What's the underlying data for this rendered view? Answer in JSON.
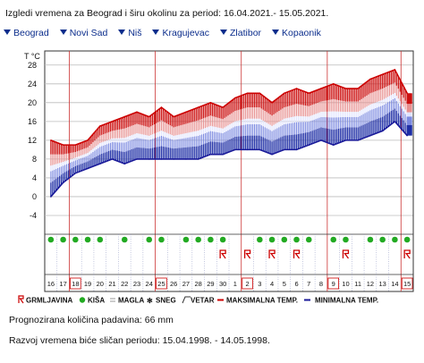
{
  "header": {
    "title": "Izgledi vremena za Beograd i širu okolinu za period: 16.04.2021.- 15.05.2021."
  },
  "cities": [
    "Beograd",
    "Novi Sad",
    "Niš",
    "Kragujevac",
    "Zlatibor",
    "Kopaonik"
  ],
  "legend": {
    "thunder": "GRMLJAVINA",
    "rain": "KIŠA",
    "fog": "MAGLA",
    "snow": "SNEG",
    "wind": "VETAR",
    "max": "MAKSIMALNA TEMP.",
    "min": "MINIMALNA TEMP."
  },
  "footer": {
    "precip_label": "Prognozirana količina padavina:",
    "precip_value": "66",
    "precip_unit": "mm",
    "similar_label": "Razvoj vremena biće sličan periodu:",
    "similar_value": "15.04.1998. - 14.05.1998."
  },
  "chart_data": {
    "type": "line",
    "ylabel": "T °C",
    "yticks": [
      -4,
      0,
      4,
      8,
      12,
      16,
      20,
      24,
      28
    ],
    "ylim": [
      -8,
      31
    ],
    "grid": true,
    "categories": [
      "16",
      "17",
      "18",
      "19",
      "20",
      "21",
      "22",
      "23",
      "24",
      "25",
      "26",
      "27",
      "28",
      "29",
      "30",
      "1",
      "2",
      "3",
      "4",
      "5",
      "6",
      "7",
      "8",
      "9",
      "10",
      "11",
      "12",
      "13",
      "14",
      "15"
    ],
    "highlighted_days": [
      "18",
      "25",
      "2",
      "9",
      "15"
    ],
    "series": [
      {
        "name": "MAKSIMALNA TEMP.",
        "color": "#cc0000",
        "values": [
          12,
          11,
          11,
          12,
          15,
          16,
          17,
          18,
          17,
          19,
          17,
          18,
          19,
          20,
          19,
          21,
          22,
          22,
          20,
          22,
          23,
          22,
          23,
          24,
          23,
          23,
          25,
          26,
          27,
          22
        ]
      },
      {
        "name": "MINIMALNA TEMP.",
        "color": "#1a1a99",
        "values": [
          0,
          3,
          5,
          6,
          7,
          8,
          7,
          8,
          8,
          8,
          8,
          8,
          8,
          9,
          9,
          10,
          10,
          10,
          9,
          10,
          10,
          11,
          12,
          11,
          12,
          12,
          13,
          14,
          16,
          13
        ]
      }
    ],
    "rain_days": [
      "16",
      "17",
      "18",
      "19",
      "20",
      "22",
      "24",
      "25",
      "27",
      "28",
      "29",
      "30",
      "3",
      "4",
      "5",
      "6",
      "7",
      "9",
      "10",
      "12",
      "13",
      "14",
      "15"
    ],
    "thunder_days": [
      "30",
      "2",
      "4",
      "6",
      "10",
      "15"
    ],
    "colors": {
      "max": "#cc0000",
      "min": "#1a1a99",
      "rain": "#22aa22",
      "thunder": "#cc0000",
      "fog": "#999999",
      "snow": "#22aa22",
      "wind": "#333333"
    }
  }
}
